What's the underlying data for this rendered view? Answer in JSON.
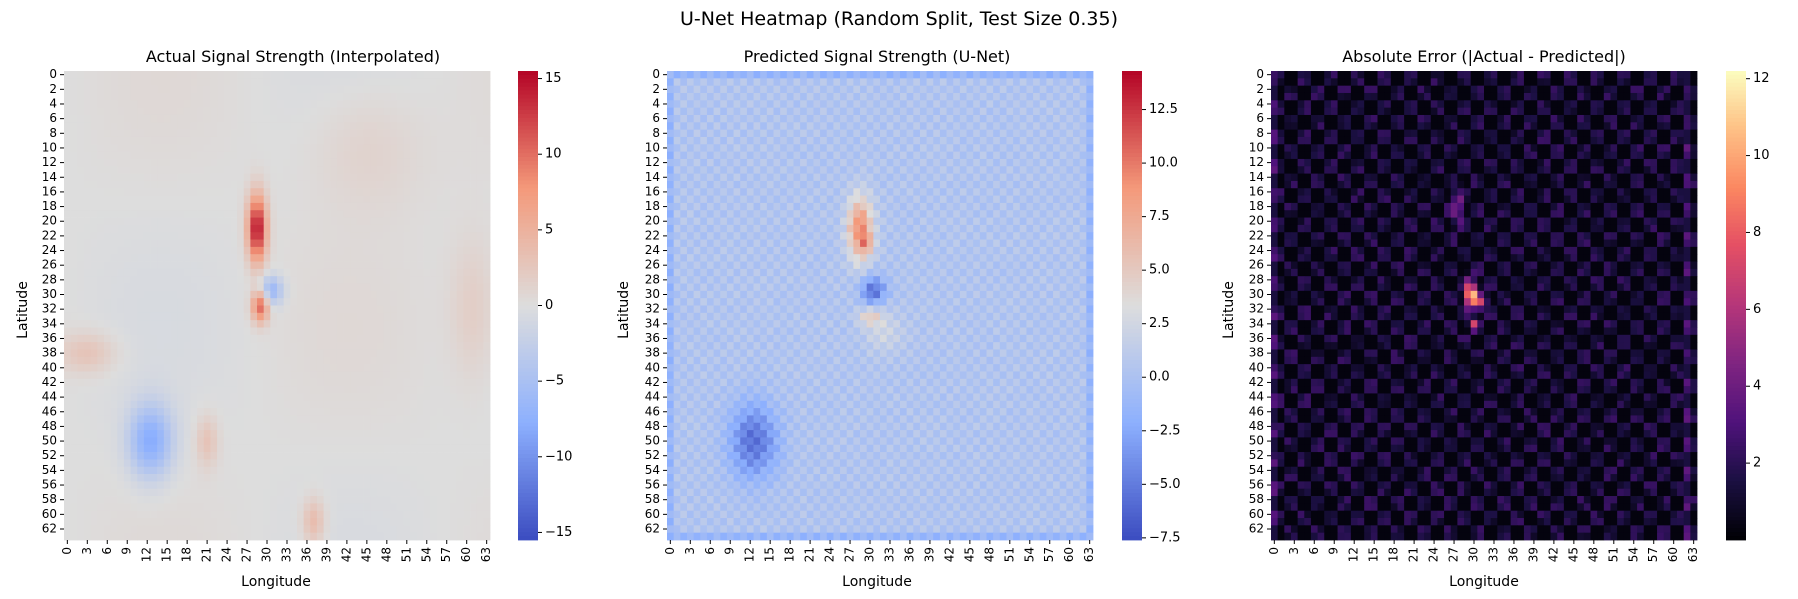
{
  "suptitle": "U-Net Heatmap (Random Split, Test Size 0.35)",
  "chart_data": [
    {
      "type": "heatmap",
      "title": "Actual Signal Strength (Interpolated)",
      "xlabel": "Longitude",
      "ylabel": "Latitude",
      "grid_size": [
        64,
        64
      ],
      "xticks": [
        0,
        3,
        6,
        9,
        12,
        15,
        18,
        21,
        24,
        27,
        30,
        33,
        36,
        39,
        42,
        45,
        48,
        51,
        54,
        57,
        60,
        63
      ],
      "yticks": [
        0,
        2,
        4,
        6,
        8,
        10,
        12,
        14,
        16,
        18,
        20,
        22,
        24,
        26,
        28,
        30,
        32,
        34,
        36,
        38,
        40,
        42,
        44,
        46,
        48,
        50,
        52,
        54,
        56,
        58,
        60,
        62
      ],
      "colormap": "coolwarm",
      "vmin": -15.5,
      "vmax": 15.5,
      "colorbar_ticks": [
        "15",
        "10",
        "5",
        "0",
        "−5",
        "−10",
        "−15"
      ],
      "colorbar_tick_values": [
        15,
        10,
        5,
        0,
        -5,
        -10,
        -15
      ],
      "features": [
        {
          "kind": "blob",
          "x": 28.5,
          "y": 21,
          "sx": 1.0,
          "sy": 3.2,
          "amp": 15
        },
        {
          "kind": "blob",
          "x": 29,
          "y": 31.5,
          "sx": 0.9,
          "sy": 1.6,
          "amp": 11
        },
        {
          "kind": "blob",
          "x": 30.5,
          "y": 29.5,
          "sx": 1.3,
          "sy": 1.4,
          "amp": -7
        },
        {
          "kind": "blob",
          "x": 12.5,
          "y": 50,
          "sx": 2.3,
          "sy": 3.5,
          "amp": -8
        },
        {
          "kind": "blob",
          "x": 21,
          "y": 50,
          "sx": 1.2,
          "sy": 2.5,
          "amp": 3
        },
        {
          "kind": "blob",
          "x": 37,
          "y": 61,
          "sx": 1.2,
          "sy": 2.2,
          "amp": 4
        },
        {
          "kind": "blob",
          "x": 3,
          "y": 38,
          "sx": 3,
          "sy": 2,
          "amp": 3
        },
        {
          "kind": "blob",
          "x": 45,
          "y": 10,
          "sx": 6,
          "sy": 6,
          "amp": 1.5
        },
        {
          "kind": "blob",
          "x": 61,
          "y": 32,
          "sx": 2.5,
          "sy": 7,
          "amp": 2
        }
      ]
    },
    {
      "type": "heatmap",
      "title": "Predicted Signal Strength (U-Net)",
      "xlabel": "Longitude",
      "ylabel": "Latitude",
      "grid_size": [
        64,
        64
      ],
      "xticks": [
        0,
        3,
        6,
        9,
        12,
        15,
        18,
        21,
        24,
        27,
        30,
        33,
        36,
        39,
        42,
        45,
        48,
        51,
        54,
        57,
        60,
        63
      ],
      "yticks": [
        0,
        2,
        4,
        6,
        8,
        10,
        12,
        14,
        16,
        18,
        20,
        22,
        24,
        26,
        28,
        30,
        32,
        34,
        36,
        38,
        40,
        42,
        44,
        46,
        48,
        50,
        52,
        54,
        56,
        58,
        60,
        62
      ],
      "colormap": "coolwarm",
      "vmin": -7.6,
      "vmax": 14.3,
      "colorbar_ticks": [
        "12.5",
        "10.0",
        "7.5",
        "5.0",
        "2.5",
        "0.0",
        "−2.5",
        "−5.0",
        "−7.5"
      ],
      "colorbar_tick_values": [
        12.5,
        10.0,
        7.5,
        5.0,
        2.5,
        0.0,
        -2.5,
        -5.0,
        -7.5
      ],
      "features": [
        {
          "kind": "blob",
          "x": 28.5,
          "y": 21,
          "sx": 1.3,
          "sy": 3.0,
          "amp": 9
        },
        {
          "kind": "blob",
          "x": 29.5,
          "y": 23,
          "sx": 0.7,
          "sy": 0.9,
          "amp": 4
        },
        {
          "kind": "blob",
          "x": 30.5,
          "y": 29.5,
          "sx": 1.3,
          "sy": 1.3,
          "amp": -6
        },
        {
          "kind": "blob",
          "x": 30,
          "y": 33,
          "sx": 1.2,
          "sy": 0.8,
          "amp": 4
        },
        {
          "kind": "blob",
          "x": 12.5,
          "y": 50,
          "sx": 2.5,
          "sy": 3.5,
          "amp": -6
        },
        {
          "kind": "blob",
          "x": 32,
          "y": 35,
          "sx": 2,
          "sy": 2,
          "amp": 2
        }
      ]
    },
    {
      "type": "heatmap",
      "title": "Absolute Error (|Actual - Predicted|)",
      "xlabel": "Longitude",
      "ylabel": "Latitude",
      "grid_size": [
        64,
        64
      ],
      "xticks": [
        0,
        3,
        6,
        9,
        12,
        15,
        18,
        21,
        24,
        27,
        30,
        33,
        36,
        39,
        42,
        45,
        48,
        51,
        54,
        57,
        60,
        63
      ],
      "yticks": [
        0,
        2,
        4,
        6,
        8,
        10,
        12,
        14,
        16,
        18,
        20,
        22,
        24,
        26,
        28,
        30,
        32,
        34,
        36,
        38,
        40,
        42,
        44,
        46,
        48,
        50,
        52,
        54,
        56,
        58,
        60,
        62
      ],
      "colormap": "magma",
      "vmin": 0,
      "vmax": 12.2,
      "colorbar_ticks": [
        "12",
        "10",
        "8",
        "6",
        "4",
        "2"
      ],
      "colorbar_tick_values": [
        12,
        10,
        8,
        6,
        4,
        2
      ],
      "features": [
        {
          "kind": "blob",
          "x": 29.5,
          "y": 30,
          "sx": 0.6,
          "sy": 1.2,
          "amp": 11
        },
        {
          "kind": "blob",
          "x": 31,
          "y": 31,
          "sx": 0.7,
          "sy": 0.8,
          "amp": 5
        },
        {
          "kind": "blob",
          "x": 27.5,
          "y": 18,
          "sx": 0.6,
          "sy": 1.6,
          "amp": 4
        },
        {
          "kind": "blob",
          "x": 30,
          "y": 34,
          "sx": 0.5,
          "sy": 0.5,
          "amp": 6
        }
      ]
    }
  ]
}
